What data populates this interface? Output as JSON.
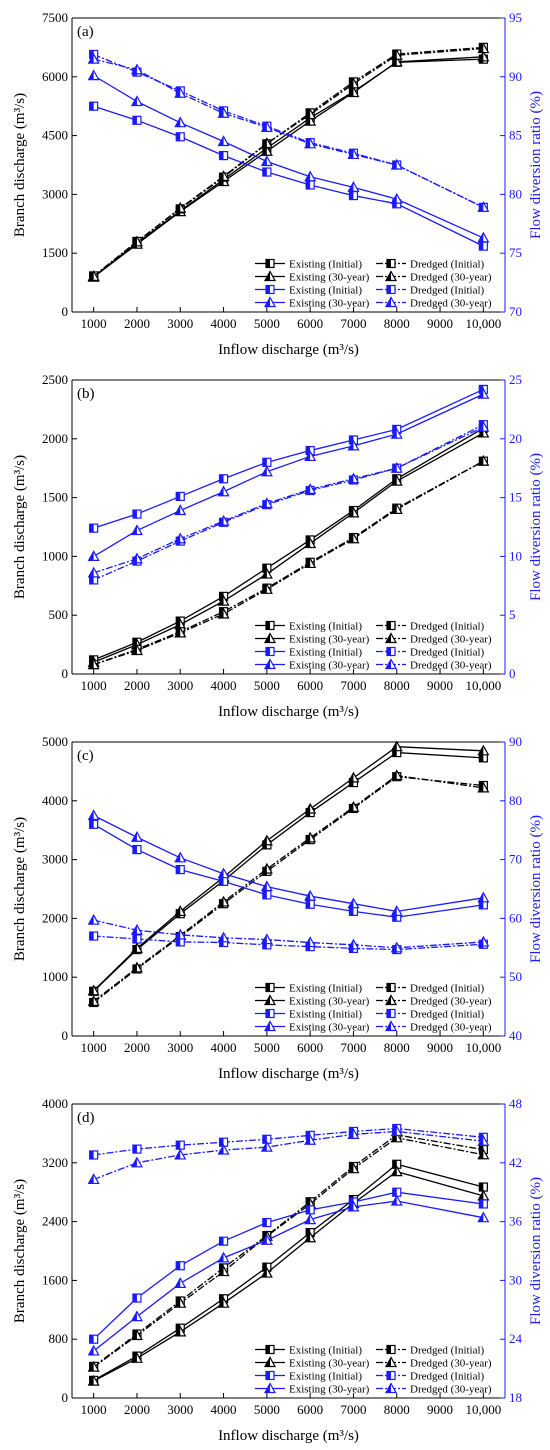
{
  "colors": {
    "existing": "#000000",
    "dredged": "#000000",
    "ratio": "#1a1aff"
  },
  "legend_labels": [
    "Existing (Initial)",
    "Dredged  (Initial)",
    "Existing (30-year)",
    "Dredged  (30-year)",
    "Existing (Initial)",
    "Dredged  (Initial)",
    "Existing (30-year)",
    "Dredged  (30-year)"
  ],
  "chart_data": [
    {
      "type": "line",
      "panel_label": "(a)",
      "xlabel": "Inflow discharge (m³/s)",
      "ylabel": "Branch discharge (m³/s)",
      "y2label": "Flow diversion ratio (%)",
      "x": [
        1000,
        2000,
        3000,
        4000,
        5000,
        6000,
        7000,
        8000,
        10000
      ],
      "xticks": [
        "1000",
        "2000",
        "3000",
        "4000",
        "5000",
        "6000",
        "7000",
        "8000",
        "9000",
        "10,000"
      ],
      "xlim": [
        500,
        10500
      ],
      "ylim": [
        0,
        7500
      ],
      "yticks": [
        0,
        1500,
        3000,
        4500,
        6000,
        7500
      ],
      "y2lim": [
        70,
        95
      ],
      "y2ticks": [
        70,
        75,
        80,
        85,
        90,
        95
      ],
      "legend_position": "bottom-right",
      "series": [
        {
          "name": "Existing (Initial)",
          "axis": "left",
          "values": [
            900,
            1760,
            2580,
            3380,
            4180,
            4950,
            5620,
            6370,
            6450
          ]
        },
        {
          "name": "Existing (30-year)",
          "axis": "left",
          "values": [
            890,
            1730,
            2560,
            3330,
            4100,
            4870,
            5600,
            6380,
            6510
          ]
        },
        {
          "name": "Dredged  (Initial)",
          "axis": "left",
          "values": [
            920,
            1800,
            2630,
            3440,
            4290,
            5080,
            5870,
            6580,
            6750
          ]
        },
        {
          "name": "Dredged  (30-year)",
          "axis": "left",
          "values": [
            910,
            1790,
            2650,
            3460,
            4300,
            5040,
            5820,
            6550,
            6720
          ]
        },
        {
          "name": "Existing (Initial)",
          "axis": "right",
          "values": [
            87.5,
            86.3,
            84.9,
            83.3,
            81.9,
            80.8,
            79.9,
            79.2,
            75.6
          ]
        },
        {
          "name": "Existing (30-year)",
          "axis": "right",
          "values": [
            90.1,
            87.9,
            86.1,
            84.5,
            82.8,
            81.5,
            80.6,
            79.6,
            76.3
          ]
        },
        {
          "name": "Dredged  (Initial)",
          "axis": "right",
          "values": [
            91.9,
            90.4,
            88.8,
            87.1,
            85.8,
            84.4,
            83.5,
            82.5,
            78.9
          ]
        },
        {
          "name": "Dredged  (30-year)",
          "axis": "right",
          "values": [
            91.5,
            90.6,
            88.6,
            86.9,
            85.7,
            84.3,
            83.4,
            82.5,
            78.9
          ]
        }
      ]
    },
    {
      "type": "line",
      "panel_label": "(b)",
      "xlabel": "Inflow discharge (m³/s)",
      "ylabel": "Branch discharge (m³/s)",
      "y2label": "Flow diversion ratio (%)",
      "x": [
        1000,
        2000,
        3000,
        4000,
        5000,
        6000,
        7000,
        8000,
        10000
      ],
      "xticks": [
        "1000",
        "2000",
        "3000",
        "4000",
        "5000",
        "6000",
        "7000",
        "8000",
        "9000",
        "10,000"
      ],
      "xlim": [
        500,
        10500
      ],
      "ylim": [
        0,
        2500
      ],
      "yticks": [
        0,
        500,
        1000,
        1500,
        2000,
        2500
      ],
      "y2lim": [
        0,
        25
      ],
      "y2ticks": [
        0,
        5,
        10,
        15,
        20,
        25
      ],
      "legend_position": "bottom-right",
      "series": [
        {
          "name": "Existing (Initial)",
          "axis": "left",
          "values": [
            120,
            270,
            450,
            660,
            900,
            1140,
            1390,
            1660,
            2090
          ]
        },
        {
          "name": "Existing (30-year)",
          "axis": "left",
          "values": [
            100,
            250,
            420,
            620,
            850,
            1110,
            1370,
            1640,
            2050
          ]
        },
        {
          "name": "Dredged  (Initial)",
          "axis": "left",
          "values": [
            80,
            210,
            360,
            530,
            730,
            950,
            1160,
            1410,
            1810
          ]
        },
        {
          "name": "Dredged  (30-year)",
          "axis": "left",
          "values": [
            80,
            200,
            350,
            510,
            720,
            940,
            1150,
            1400,
            1810
          ]
        },
        {
          "name": "Existing (Initial)",
          "axis": "right",
          "values": [
            12.4,
            13.6,
            15.1,
            16.6,
            18.0,
            19.0,
            19.9,
            20.8,
            24.2
          ]
        },
        {
          "name": "Existing (30-year)",
          "axis": "right",
          "values": [
            10.0,
            12.2,
            13.9,
            15.5,
            17.2,
            18.5,
            19.4,
            20.4,
            23.8
          ]
        },
        {
          "name": "Dredged  (Initial)",
          "axis": "right",
          "values": [
            8.0,
            9.6,
            11.3,
            12.9,
            14.4,
            15.6,
            16.5,
            17.5,
            21.2
          ]
        },
        {
          "name": "Dredged  (30-year)",
          "axis": "right",
          "values": [
            8.6,
            9.8,
            11.5,
            13.0,
            14.5,
            15.7,
            16.6,
            17.5,
            21.0
          ]
        }
      ]
    },
    {
      "type": "line",
      "panel_label": "(c)",
      "xlabel": "Inflow discharge (m³/s)",
      "ylabel": "Branch discharge (m³/s)",
      "y2label": "Flow diversion ratio (%)",
      "x": [
        1000,
        2000,
        3000,
        4000,
        5000,
        6000,
        7000,
        8000,
        10000
      ],
      "xticks": [
        "1000",
        "2000",
        "3000",
        "4000",
        "5000",
        "6000",
        "7000",
        "8000",
        "9000",
        "10,000"
      ],
      "xlim": [
        500,
        10500
      ],
      "ylim": [
        0,
        5000
      ],
      "yticks": [
        0,
        1000,
        2000,
        3000,
        4000,
        5000
      ],
      "y2lim": [
        40,
        90
      ],
      "y2ticks": [
        40,
        50,
        60,
        70,
        80,
        90
      ],
      "legend_position": "bottom-right",
      "series": [
        {
          "name": "Existing (Initial)",
          "axis": "left",
          "values": [
            760,
            1470,
            2080,
            2640,
            3250,
            3800,
            4310,
            4820,
            4730
          ]
        },
        {
          "name": "Existing (30-year)",
          "axis": "left",
          "values": [
            770,
            1490,
            2120,
            2700,
            3320,
            3860,
            4390,
            4920,
            4850
          ]
        },
        {
          "name": "Dredged  (Initial)",
          "axis": "left",
          "values": [
            570,
            1140,
            1690,
            2250,
            2800,
            3340,
            3870,
            4410,
            4260
          ]
        },
        {
          "name": "Dredged  (30-year)",
          "axis": "left",
          "values": [
            590,
            1160,
            1710,
            2280,
            2840,
            3370,
            3890,
            4430,
            4220
          ]
        },
        {
          "name": "Existing (Initial)",
          "axis": "right",
          "values": [
            76.0,
            71.7,
            68.3,
            66.3,
            64.0,
            62.4,
            61.2,
            60.2,
            62.3
          ]
        },
        {
          "name": "Existing (30-year)",
          "axis": "right",
          "values": [
            77.5,
            73.8,
            70.3,
            67.6,
            65.4,
            63.8,
            62.5,
            61.2,
            63.5
          ]
        },
        {
          "name": "Dredged  (Initial)",
          "axis": "right",
          "values": [
            57.0,
            56.5,
            56.0,
            55.9,
            55.5,
            55.2,
            54.9,
            54.7,
            55.6
          ]
        },
        {
          "name": "Dredged  (30-year)",
          "axis": "right",
          "values": [
            59.7,
            58.0,
            57.2,
            56.7,
            56.4,
            55.9,
            55.5,
            55.0,
            56.0
          ]
        }
      ]
    },
    {
      "type": "line",
      "panel_label": "(d)",
      "xlabel": "Inflow discharge (m³/s)",
      "ylabel": "Branch discharge (m³/s)",
      "y2label": "Flow diversion ratio (%)",
      "x": [
        1000,
        2000,
        3000,
        4000,
        5000,
        6000,
        7000,
        8000,
        10000
      ],
      "xticks": [
        "1000",
        "2000",
        "3000",
        "4000",
        "5000",
        "6000",
        "7000",
        "8000",
        "9000",
        "10,000"
      ],
      "xlim": [
        500,
        10500
      ],
      "ylim": [
        0,
        4000
      ],
      "yticks": [
        0,
        800,
        1600,
        2400,
        3200,
        4000
      ],
      "y2lim": [
        18,
        48
      ],
      "y2ticks": [
        18,
        24,
        30,
        36,
        42,
        48
      ],
      "legend_position": "bottom-right",
      "series": [
        {
          "name": "Existing (Initial)",
          "axis": "left",
          "values": [
            240,
            570,
            950,
            1350,
            1780,
            2250,
            2700,
            3180,
            2870
          ]
        },
        {
          "name": "Existing (30-year)",
          "axis": "left",
          "values": [
            230,
            540,
            900,
            1290,
            1700,
            2180,
            2650,
            3080,
            2750
          ]
        },
        {
          "name": "Dredged  (Initial)",
          "axis": "left",
          "values": [
            430,
            870,
            1320,
            1770,
            2210,
            2670,
            3150,
            3580,
            3380
          ]
        },
        {
          "name": "Dredged  (30-year)",
          "axis": "left",
          "values": [
            420,
            850,
            1290,
            1720,
            2200,
            2640,
            3120,
            3540,
            3310
          ]
        },
        {
          "name": "Existing (Initial)",
          "axis": "right",
          "values": [
            24.0,
            28.2,
            31.5,
            34.0,
            35.9,
            37.2,
            38.0,
            39.0,
            37.8
          ]
        },
        {
          "name": "Existing (30-year)",
          "axis": "right",
          "values": [
            22.8,
            26.3,
            29.7,
            32.3,
            34.1,
            36.2,
            37.5,
            38.1,
            36.4
          ]
        },
        {
          "name": "Dredged  (Initial)",
          "axis": "right",
          "values": [
            42.8,
            43.4,
            43.8,
            44.1,
            44.4,
            44.8,
            45.2,
            45.5,
            44.6
          ]
        },
        {
          "name": "Dredged  (30-year)",
          "axis": "right",
          "values": [
            40.3,
            42.0,
            42.8,
            43.3,
            43.6,
            44.3,
            44.9,
            45.2,
            44.2
          ]
        }
      ]
    }
  ]
}
